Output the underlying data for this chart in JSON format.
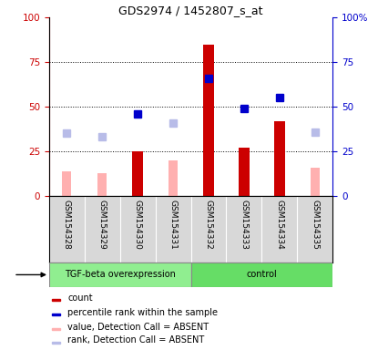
{
  "title": "GDS2974 / 1452807_s_at",
  "samples": [
    "GSM154328",
    "GSM154329",
    "GSM154330",
    "GSM154331",
    "GSM154332",
    "GSM154333",
    "GSM154334",
    "GSM154335"
  ],
  "red_bars": [
    null,
    null,
    25,
    null,
    85,
    27,
    42,
    null
  ],
  "pink_bars": [
    14,
    13,
    null,
    20,
    null,
    null,
    null,
    16
  ],
  "blue_squares": [
    null,
    null,
    46,
    null,
    66,
    49,
    55,
    null
  ],
  "lightblue_squares": [
    35,
    33,
    null,
    41,
    null,
    null,
    null,
    36
  ],
  "ylim": [
    0,
    100
  ],
  "yticks": [
    0,
    25,
    50,
    75,
    100
  ],
  "left_axis_color": "#cc0000",
  "right_axis_color": "#0000cc",
  "bg_color": "#d8d8d8",
  "bar_width": 0.3,
  "group_labels": [
    "TGF-beta overexpression",
    "control"
  ],
  "group1_color": "#90ee90",
  "group2_color": "#66dd66",
  "legend_labels": [
    "count",
    "percentile rank within the sample",
    "value, Detection Call = ABSENT",
    "rank, Detection Call = ABSENT"
  ],
  "legend_colors": [
    "#cc0000",
    "#0000cc",
    "#ffb0b0",
    "#b8bce8"
  ],
  "title_fontsize": 9,
  "tick_fontsize": 7.5,
  "sample_fontsize": 6.5,
  "legend_fontsize": 7
}
